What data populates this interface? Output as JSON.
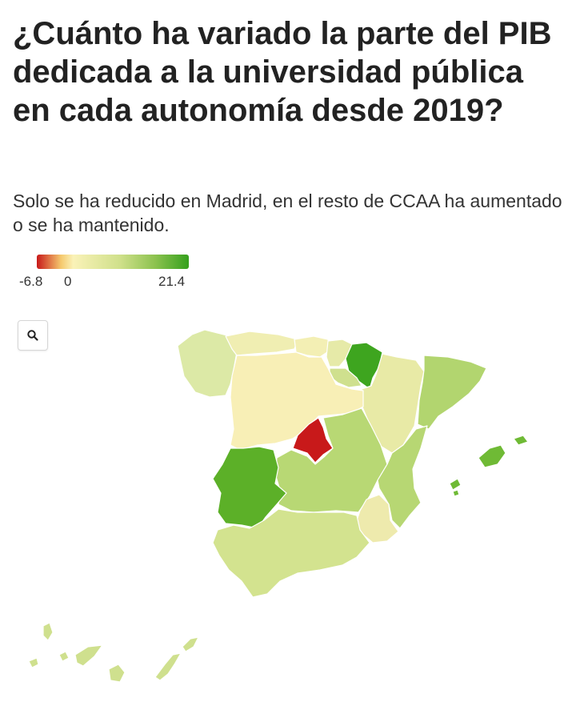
{
  "title": "¿Cuánto ha variado la parte del PIB dedicada a la universidad pública en cada autonomía desde 2019?",
  "subtitle": "Solo se ha reducido en Madrid, en el resto de CCAA ha aumentado o se ha mantenido.",
  "legend": {
    "min_label": "-6.8",
    "zero_label": "0",
    "max_label": "21.4",
    "min_value": -6.8,
    "max_value": 21.4
  },
  "search": {
    "icon": "search-icon"
  },
  "colors": {
    "negative": "#c8191a",
    "neutral": "#faf2b8",
    "positive_high": "#35a01d",
    "border": "#ffffff"
  },
  "regions": [
    {
      "key": "galicia",
      "color": "#dce9a6"
    },
    {
      "key": "asturias",
      "color": "#f0eeb2"
    },
    {
      "key": "cantabria",
      "color": "#f3efb4"
    },
    {
      "key": "pais_vasco",
      "color": "#e6eaa8"
    },
    {
      "key": "navarra",
      "color": "#3ea51f"
    },
    {
      "key": "la_rioja",
      "color": "#cfe08e"
    },
    {
      "key": "aragon",
      "color": "#e8eaa6"
    },
    {
      "key": "cataluna",
      "color": "#b2d56f"
    },
    {
      "key": "castilla_y_leon",
      "color": "#f8efb6"
    },
    {
      "key": "madrid",
      "color": "#c8191a"
    },
    {
      "key": "castilla_la_mancha",
      "color": "#b8d874"
    },
    {
      "key": "extremadura",
      "color": "#5cb028"
    },
    {
      "key": "comunidad_valenciana",
      "color": "#b7d773"
    },
    {
      "key": "murcia",
      "color": "#eeeaad"
    },
    {
      "key": "andalucia",
      "color": "#d3e38f"
    },
    {
      "key": "baleares",
      "color": "#6fba35"
    },
    {
      "key": "canarias",
      "color": "#cfe08e"
    }
  ]
}
